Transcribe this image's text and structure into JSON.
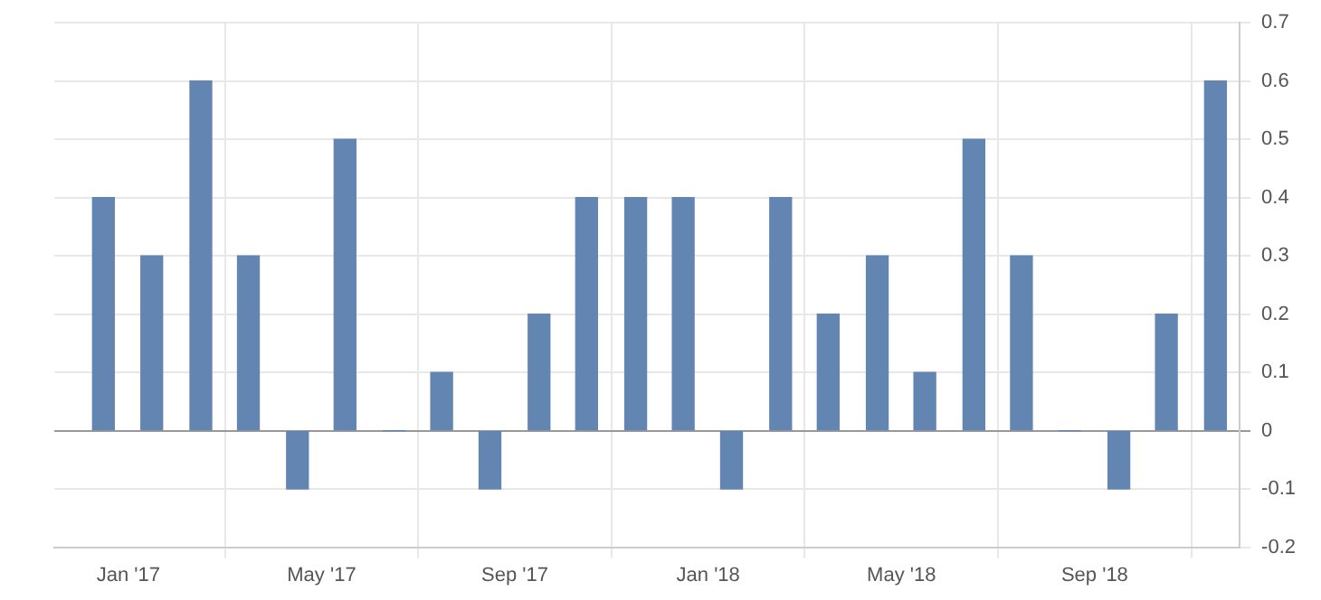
{
  "chart_data": {
    "type": "bar",
    "x": [
      "2016-12-16",
      "2017-01-16",
      "2017-02-15",
      "2017-03-16",
      "2017-04-16",
      "2017-05-16",
      "2017-06-16",
      "2017-07-16",
      "2017-08-16",
      "2017-09-16",
      "2017-10-16",
      "2017-11-16",
      "2017-12-16",
      "2018-01-16",
      "2018-02-15",
      "2018-03-16",
      "2018-04-16",
      "2018-05-16",
      "2018-06-16",
      "2018-07-16",
      "2018-08-16",
      "2018-09-16",
      "2018-10-16",
      "2018-11-16"
    ],
    "values": [
      0.4,
      0.3,
      0.6,
      0.3,
      -0.1,
      0.5,
      0,
      0.1,
      -0.1,
      0.2,
      0.4,
      0.4,
      0.4,
      -0.1,
      0.4,
      0.2,
      0.3,
      0.1,
      0.5,
      0.3,
      0,
      -0.1,
      0.2,
      0.6
    ],
    "color": "#6285b1",
    "xlim": [
      "2016-11-15",
      "2018-12-01"
    ],
    "xticks": [
      {
        "value": "2017-01",
        "label": "Jan '17"
      },
      {
        "value": "2017-05",
        "label": "May '17"
      },
      {
        "value": "2017-09",
        "label": "Sep '17"
      },
      {
        "value": "2018-01",
        "label": "Jan '18"
      },
      {
        "value": "2018-05",
        "label": "May '18"
      },
      {
        "value": "2018-09",
        "label": "Sep '18"
      }
    ],
    "ylim": [
      -0.2,
      0.7
    ],
    "yticks": [
      -0.2,
      -0.1,
      0,
      0.1,
      0.2,
      0.3,
      0.4,
      0.5,
      0.6,
      0.7
    ],
    "grid": true,
    "legend": false
  }
}
